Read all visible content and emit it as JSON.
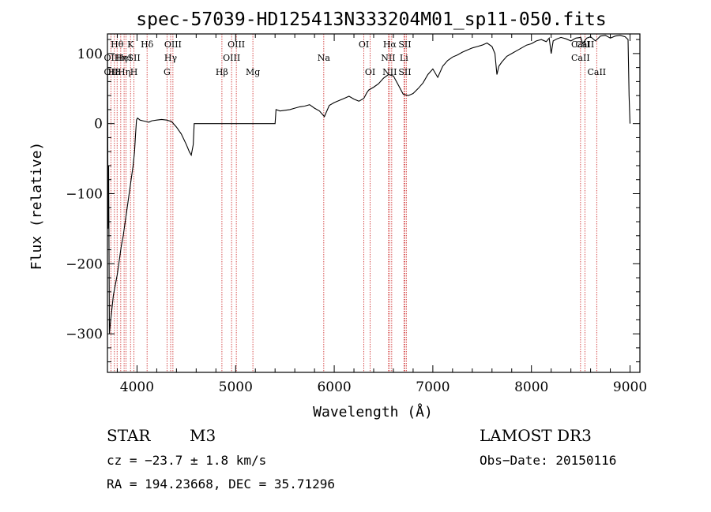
{
  "chart_data": {
    "type": "line",
    "title": "spec-57039-HD125413N333204M01_sp11-050.fits",
    "xlabel": "Wavelength (Å)",
    "ylabel": "Flux (relative)",
    "xlim": [
      3700,
      9100
    ],
    "ylim": [
      -355,
      128
    ],
    "x_ticks": [
      4000,
      5000,
      6000,
      7000,
      8000,
      9000
    ],
    "y_ticks": [
      -300,
      -200,
      -100,
      0,
      100
    ],
    "series": [
      {
        "name": "flux",
        "points": [
          [
            3700,
            100
          ],
          [
            3703,
            -10
          ],
          [
            3706,
            -150
          ],
          [
            3712,
            -60
          ],
          [
            3720,
            -300
          ],
          [
            3730,
            -285
          ],
          [
            3745,
            -265
          ],
          [
            3760,
            -245
          ],
          [
            3780,
            -230
          ],
          [
            3800,
            -215
          ],
          [
            3820,
            -195
          ],
          [
            3840,
            -175
          ],
          [
            3860,
            -160
          ],
          [
            3880,
            -140
          ],
          [
            3900,
            -120
          ],
          [
            3920,
            -100
          ],
          [
            3940,
            -80
          ],
          [
            3960,
            -60
          ],
          [
            3975,
            -40
          ],
          [
            3985,
            -15
          ],
          [
            3995,
            5
          ],
          [
            4005,
            8
          ],
          [
            4030,
            5
          ],
          [
            4060,
            4
          ],
          [
            4090,
            3
          ],
          [
            4120,
            2
          ],
          [
            4150,
            4
          ],
          [
            4200,
            5
          ],
          [
            4250,
            6
          ],
          [
            4300,
            5
          ],
          [
            4350,
            3
          ],
          [
            4400,
            -5
          ],
          [
            4450,
            -15
          ],
          [
            4500,
            -30
          ],
          [
            4530,
            -40
          ],
          [
            4550,
            -45
          ],
          [
            4570,
            -30
          ],
          [
            4580,
            0
          ],
          [
            5000,
            0
          ],
          [
            5200,
            0
          ],
          [
            5400,
            0
          ],
          [
            5410,
            20
          ],
          [
            5450,
            18
          ],
          [
            5500,
            19
          ],
          [
            5550,
            20
          ],
          [
            5600,
            22
          ],
          [
            5650,
            24
          ],
          [
            5700,
            25
          ],
          [
            5750,
            27
          ],
          [
            5800,
            22
          ],
          [
            5850,
            18
          ],
          [
            5900,
            10
          ],
          [
            5950,
            26
          ],
          [
            6000,
            30
          ],
          [
            6050,
            33
          ],
          [
            6100,
            36
          ],
          [
            6150,
            39
          ],
          [
            6200,
            35
          ],
          [
            6250,
            32
          ],
          [
            6300,
            36
          ],
          [
            6330,
            44
          ],
          [
            6350,
            48
          ],
          [
            6400,
            52
          ],
          [
            6450,
            57
          ],
          [
            6500,
            65
          ],
          [
            6550,
            70
          ],
          [
            6600,
            68
          ],
          [
            6650,
            55
          ],
          [
            6700,
            42
          ],
          [
            6750,
            40
          ],
          [
            6800,
            43
          ],
          [
            6850,
            50
          ],
          [
            6900,
            58
          ],
          [
            6950,
            70
          ],
          [
            7000,
            78
          ],
          [
            7050,
            66
          ],
          [
            7100,
            82
          ],
          [
            7150,
            90
          ],
          [
            7200,
            95
          ],
          [
            7250,
            98
          ],
          [
            7300,
            102
          ],
          [
            7350,
            105
          ],
          [
            7400,
            108
          ],
          [
            7450,
            110
          ],
          [
            7500,
            112
          ],
          [
            7550,
            115
          ],
          [
            7600,
            110
          ],
          [
            7630,
            100
          ],
          [
            7650,
            70
          ],
          [
            7670,
            82
          ],
          [
            7700,
            88
          ],
          [
            7750,
            96
          ],
          [
            7800,
            100
          ],
          [
            7850,
            104
          ],
          [
            7900,
            108
          ],
          [
            7950,
            112
          ],
          [
            8000,
            114
          ],
          [
            8050,
            118
          ],
          [
            8100,
            120
          ],
          [
            8150,
            117
          ],
          [
            8180,
            122
          ],
          [
            8200,
            100
          ],
          [
            8220,
            118
          ],
          [
            8260,
            121
          ],
          [
            8300,
            123
          ],
          [
            8350,
            121
          ],
          [
            8400,
            118
          ],
          [
            8450,
            122
          ],
          [
            8500,
            123
          ],
          [
            8520,
            114
          ],
          [
            8560,
            122
          ],
          [
            8600,
            124
          ],
          [
            8650,
            118
          ],
          [
            8700,
            125
          ],
          [
            8750,
            126
          ],
          [
            8800,
            122
          ],
          [
            8850,
            125
          ],
          [
            8900,
            126
          ],
          [
            8950,
            124
          ],
          [
            8980,
            120
          ],
          [
            8990,
            40
          ],
          [
            9000,
            0
          ]
        ]
      }
    ],
    "line_markers": [
      {
        "wave": 3735,
        "labels": [
          "",
          "OII",
          "OII"
        ]
      },
      {
        "wave": 3771,
        "labels": [
          "",
          "",
          "H8"
        ]
      },
      {
        "wave": 3798,
        "labels": [
          "Hθ",
          "",
          ""
        ]
      },
      {
        "wave": 3835,
        "labels": [
          "",
          "Hη",
          ""
        ]
      },
      {
        "wave": 3869,
        "labels": [
          "",
          "HeI",
          "Hη"
        ]
      },
      {
        "wave": 3889,
        "labels": [
          "",
          "",
          ""
        ]
      },
      {
        "wave": 3934,
        "labels": [
          "K",
          "",
          ""
        ]
      },
      {
        "wave": 3969,
        "labels": [
          "",
          "SII",
          "H"
        ]
      },
      {
        "wave": 4102,
        "labels": [
          "Hδ",
          "",
          ""
        ]
      },
      {
        "wave": 4304,
        "labels": [
          "",
          "",
          "G"
        ]
      },
      {
        "wave": 4341,
        "labels": [
          "",
          "Hγ",
          ""
        ]
      },
      {
        "wave": 4364,
        "labels": [
          "OIII",
          "",
          ""
        ]
      },
      {
        "wave": 4861,
        "labels": [
          "",
          "",
          "Hβ"
        ]
      },
      {
        "wave": 4959,
        "labels": [
          "",
          "OIII",
          ""
        ]
      },
      {
        "wave": 5007,
        "labels": [
          "OIII",
          "",
          ""
        ]
      },
      {
        "wave": 5175,
        "labels": [
          "",
          "",
          "Mg"
        ]
      },
      {
        "wave": 5894,
        "labels": [
          "",
          "Na",
          ""
        ]
      },
      {
        "wave": 6300,
        "labels": [
          "OI",
          "",
          ""
        ]
      },
      {
        "wave": 6364,
        "labels": [
          "",
          "",
          "OI"
        ]
      },
      {
        "wave": 6548,
        "labels": [
          "",
          "NII",
          ""
        ]
      },
      {
        "wave": 6563,
        "labels": [
          "Hα",
          "",
          "NII"
        ]
      },
      {
        "wave": 6583,
        "labels": [
          "",
          "",
          ""
        ]
      },
      {
        "wave": 6707,
        "labels": [
          "",
          "Li",
          ""
        ]
      },
      {
        "wave": 6716,
        "labels": [
          "SII",
          "",
          "SII"
        ]
      },
      {
        "wave": 6731,
        "labels": [
          "",
          "",
          ""
        ]
      },
      {
        "wave": 8498,
        "labels": [
          "CaII",
          "CaII",
          ""
        ]
      },
      {
        "wave": 8542,
        "labels": [
          "CaII",
          "",
          ""
        ]
      },
      {
        "wave": 8662,
        "labels": [
          "",
          "",
          "CaII"
        ]
      }
    ]
  },
  "info": {
    "object_class": "STAR",
    "subclass": "M3",
    "survey": "LAMOST DR3",
    "cz": "cz = −23.7 ± 1.8 km/s",
    "obs_date": "Obs−Date: 20150116",
    "coords": "RA = 194.23668, DEC =  35.71296"
  },
  "colors": {
    "spectrum": "#000000",
    "line_marker": "#cc2222",
    "axes": "#000000"
  }
}
